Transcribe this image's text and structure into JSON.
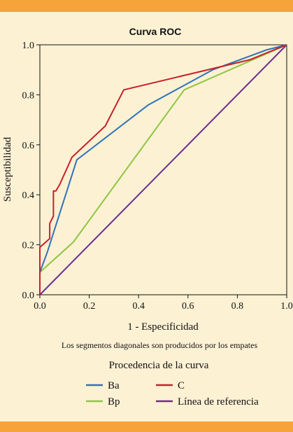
{
  "colors": {
    "band": "#f5a33a",
    "background": "#fdf1d4",
    "axis": "#111111"
  },
  "chart_data": {
    "type": "line",
    "title": "Curva ROC",
    "xlabel": "1 - Especificidad",
    "ylabel": "Susceptibilidad",
    "xlim": [
      0,
      1
    ],
    "ylim": [
      0,
      1
    ],
    "xticks": [
      "0.0",
      "0.2",
      "0.4",
      "0.6",
      "0.8",
      "1.0"
    ],
    "yticks": [
      "0.0",
      "0.2",
      "0.4",
      "0.6",
      "0.8",
      "1.0"
    ],
    "grid": false,
    "note": "Los segmentos diagonales son producidos por los empates",
    "legend_title": "Procedencia de la curva",
    "legend_position": "bottom",
    "series": [
      {
        "name": "Ba",
        "color": "#2f73b8",
        "x": [
          0,
          0,
          0.03,
          0.15,
          0.44,
          0.7,
          0.92,
          1
        ],
        "y": [
          0,
          0.09,
          0.17,
          0.54,
          0.76,
          0.9,
          0.98,
          1
        ]
      },
      {
        "name": "C",
        "color": "#c8202a",
        "x": [
          0,
          0,
          0.04,
          0.04,
          0.055,
          0.055,
          0.065,
          0.08,
          0.13,
          0.265,
          0.34,
          0.85,
          1
        ],
        "y": [
          0,
          0.19,
          0.225,
          0.285,
          0.315,
          0.415,
          0.415,
          0.44,
          0.55,
          0.675,
          0.82,
          0.94,
          1
        ]
      },
      {
        "name": "Bp",
        "color": "#8cc63f",
        "x": [
          0,
          0,
          0.135,
          0.585,
          1
        ],
        "y": [
          0,
          0.09,
          0.21,
          0.82,
          1
        ]
      },
      {
        "name": "Línea de referencia",
        "color": "#6b2e91",
        "x": [
          0,
          1
        ],
        "y": [
          0,
          1
        ]
      }
    ]
  }
}
